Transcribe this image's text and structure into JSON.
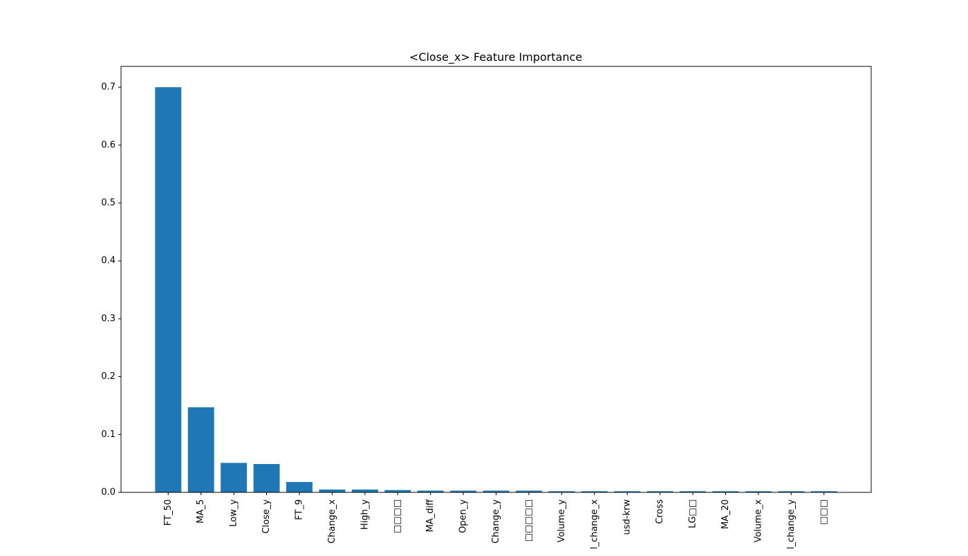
{
  "chart_data": {
    "type": "bar",
    "title": "<Close_x> Feature Importance",
    "categories": [
      "FT_50",
      "MA_5",
      "Low_y",
      "Close_y",
      "FT_9",
      "Change_x",
      "High_y",
      "□□□□",
      "MA_diff",
      "Open_y",
      "Change_y",
      "□□□□□",
      "Volume_y",
      "l_change_x",
      "usd-krw",
      "Cross",
      "LG□□",
      "MA_20",
      "Volume_x",
      "l_change_y",
      "□□□"
    ],
    "values": [
      0.7,
      0.147,
      0.051,
      0.049,
      0.018,
      0.005,
      0.005,
      0.004,
      0.003,
      0.003,
      0.003,
      0.003,
      0.002,
      0.002,
      0.002,
      0.002,
      0.002,
      0.002,
      0.002,
      0.002,
      0.002
    ],
    "color": "#1f77b4",
    "ylim": [
      0,
      0.736
    ],
    "yticks": [
      {
        "value": 0,
        "label": "0.0"
      },
      0.1,
      0.2,
      0.3,
      0.4,
      0.5,
      0.6,
      0.7
    ],
    "grid": false
  }
}
